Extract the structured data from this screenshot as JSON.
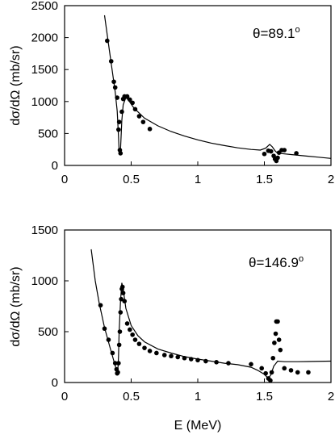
{
  "figure": {
    "x_axis_label": "E (MeV)"
  },
  "chart_data": [
    {
      "type": "scatter",
      "title": "",
      "annotation": {
        "prefix": "θ=89.1",
        "sup": "o"
      },
      "xlabel": "",
      "ylabel": "dσ/dΩ (mb/sr)",
      "xlim": [
        0,
        2
      ],
      "ylim": [
        0,
        2500
      ],
      "xticks": [
        0,
        0.5,
        1,
        1.5,
        2
      ],
      "xtick_labels": [
        "0",
        "0.5",
        "1",
        "1.5",
        "2"
      ],
      "yticks": [
        0,
        500,
        1000,
        1500,
        2000,
        2500
      ],
      "ytick_labels": [
        "0",
        "500",
        "1000",
        "1500",
        "2000",
        "2500"
      ],
      "grid": false,
      "series": [
        {
          "kind": "markers",
          "color": "#000000",
          "points": [
            [
              0.32,
              1950
            ],
            [
              0.35,
              1630
            ],
            [
              0.37,
              1310
            ],
            [
              0.38,
              1220
            ],
            [
              0.395,
              1060
            ],
            [
              0.405,
              560
            ],
            [
              0.41,
              680
            ],
            [
              0.415,
              240
            ],
            [
              0.42,
              190
            ],
            [
              0.43,
              840
            ],
            [
              0.44,
              1040
            ],
            [
              0.45,
              1080
            ],
            [
              0.47,
              1080
            ],
            [
              0.49,
              1030
            ],
            [
              0.51,
              980
            ],
            [
              0.53,
              880
            ],
            [
              0.56,
              770
            ],
            [
              0.59,
              680
            ],
            [
              0.64,
              570
            ],
            [
              1.5,
              180
            ],
            [
              1.53,
              230
            ],
            [
              1.55,
              220
            ],
            [
              1.57,
              150
            ],
            [
              1.58,
              100
            ],
            [
              1.59,
              70
            ],
            [
              1.6,
              120
            ],
            [
              1.61,
              200
            ],
            [
              1.63,
              240
            ],
            [
              1.65,
              240
            ],
            [
              1.74,
              190
            ]
          ]
        },
        {
          "kind": "line",
          "color": "#000000",
          "points": [
            [
              0.3,
              2350
            ],
            [
              0.33,
              1900
            ],
            [
              0.36,
              1450
            ],
            [
              0.38,
              1150
            ],
            [
              0.395,
              850
            ],
            [
              0.405,
              450
            ],
            [
              0.41,
              220
            ],
            [
              0.415,
              160
            ],
            [
              0.42,
              250
            ],
            [
              0.43,
              700
            ],
            [
              0.44,
              950
            ],
            [
              0.46,
              1060
            ],
            [
              0.48,
              1020
            ],
            [
              0.52,
              900
            ],
            [
              0.6,
              740
            ],
            [
              0.7,
              620
            ],
            [
              0.8,
              530
            ],
            [
              0.9,
              460
            ],
            [
              1.0,
              400
            ],
            [
              1.1,
              350
            ],
            [
              1.2,
              310
            ],
            [
              1.3,
              275
            ],
            [
              1.4,
              250
            ],
            [
              1.47,
              240
            ],
            [
              1.51,
              270
            ],
            [
              1.54,
              330
            ],
            [
              1.56,
              290
            ],
            [
              1.58,
              230
            ],
            [
              1.6,
              190
            ],
            [
              1.63,
              185
            ],
            [
              1.7,
              170
            ],
            [
              1.8,
              150
            ],
            [
              1.9,
              130
            ],
            [
              2.0,
              110
            ]
          ]
        }
      ]
    },
    {
      "type": "scatter",
      "title": "",
      "annotation": {
        "prefix": "θ=146.9",
        "sup": "o"
      },
      "xlabel": "E (MeV)",
      "ylabel": "dσ/dΩ (mb/sr)",
      "xlim": [
        0,
        2
      ],
      "ylim": [
        0,
        1500
      ],
      "xticks": [
        0,
        0.5,
        1,
        1.5,
        2
      ],
      "xtick_labels": [
        "0",
        "0.5",
        "1",
        "1.5",
        "2"
      ],
      "yticks": [
        0,
        500,
        1000,
        1500
      ],
      "ytick_labels": [
        "0",
        "500",
        "1000",
        "1500"
      ],
      "grid": false,
      "series": [
        {
          "kind": "markers",
          "color": "#000000",
          "points": [
            [
              0.27,
              760
            ],
            [
              0.3,
              530
            ],
            [
              0.33,
              420
            ],
            [
              0.36,
              290
            ],
            [
              0.38,
              190
            ],
            [
              0.39,
              130
            ],
            [
              0.395,
              90
            ],
            [
              0.4,
              100
            ],
            [
              0.405,
              190
            ],
            [
              0.41,
              370
            ],
            [
              0.415,
              500
            ],
            [
              0.42,
              690
            ],
            [
              0.425,
              820
            ],
            [
              0.43,
              920
            ],
            [
              0.435,
              940
            ],
            [
              0.44,
              880
            ],
            [
              0.45,
              800
            ],
            [
              0.47,
              580
            ],
            [
              0.49,
              520
            ],
            [
              0.51,
              470
            ],
            [
              0.53,
              420
            ],
            [
              0.56,
              380
            ],
            [
              0.6,
              340
            ],
            [
              0.64,
              310
            ],
            [
              0.69,
              290
            ],
            [
              0.75,
              270
            ],
            [
              0.8,
              260
            ],
            [
              0.85,
              250
            ],
            [
              0.9,
              240
            ],
            [
              0.95,
              230
            ],
            [
              1.0,
              220
            ],
            [
              1.06,
              210
            ],
            [
              1.14,
              200
            ],
            [
              1.23,
              190
            ],
            [
              1.4,
              180
            ],
            [
              1.48,
              140
            ],
            [
              1.51,
              90
            ],
            [
              1.53,
              40
            ],
            [
              1.545,
              20
            ],
            [
              1.555,
              100
            ],
            [
              1.565,
              240
            ],
            [
              1.575,
              390
            ],
            [
              1.585,
              480
            ],
            [
              1.59,
              600
            ],
            [
              1.6,
              600
            ],
            [
              1.61,
              420
            ],
            [
              1.62,
              320
            ],
            [
              1.65,
              140
            ],
            [
              1.7,
              120
            ],
            [
              1.75,
              100
            ],
            [
              1.83,
              100
            ]
          ]
        },
        {
          "kind": "line",
          "color": "#000000",
          "points": [
            [
              0.2,
              1310
            ],
            [
              0.23,
              1000
            ],
            [
              0.26,
              780
            ],
            [
              0.3,
              540
            ],
            [
              0.34,
              350
            ],
            [
              0.37,
              210
            ],
            [
              0.39,
              120
            ],
            [
              0.4,
              120
            ],
            [
              0.405,
              250
            ],
            [
              0.41,
              500
            ],
            [
              0.42,
              800
            ],
            [
              0.43,
              980
            ],
            [
              0.44,
              920
            ],
            [
              0.46,
              730
            ],
            [
              0.5,
              560
            ],
            [
              0.55,
              460
            ],
            [
              0.6,
              400
            ],
            [
              0.7,
              330
            ],
            [
              0.8,
              290
            ],
            [
              0.9,
              255
            ],
            [
              1.0,
              230
            ],
            [
              1.1,
              210
            ],
            [
              1.2,
              190
            ],
            [
              1.3,
              175
            ],
            [
              1.4,
              150
            ],
            [
              1.45,
              120
            ],
            [
              1.5,
              80
            ],
            [
              1.53,
              40
            ],
            [
              1.55,
              80
            ],
            [
              1.57,
              160
            ],
            [
              1.6,
              210
            ],
            [
              1.65,
              205
            ],
            [
              1.75,
              205
            ],
            [
              2.0,
              210
            ]
          ]
        }
      ]
    }
  ]
}
